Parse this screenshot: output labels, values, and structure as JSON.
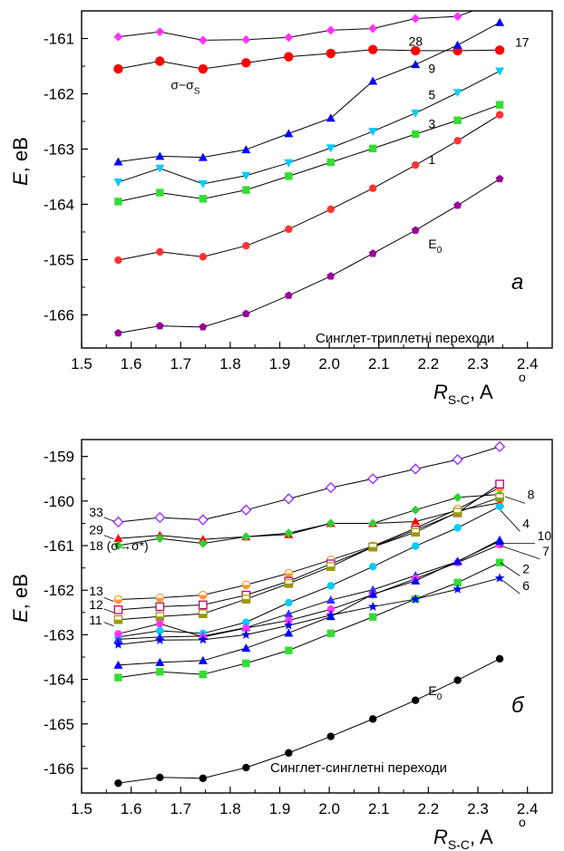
{
  "chart_data": [
    {
      "type": "line",
      "panel_letter": "а",
      "annotation": "Синглет-триплетні переходи",
      "ylabel_italic": "E",
      "ylabel_rest": ", eB",
      "xlabel_main": "R",
      "xlabel_sub": "S-C",
      "xlabel_rest": ", A",
      "xlabel_ring": "o",
      "xlim": [
        1.5,
        2.45
      ],
      "ylim": [
        -166.6,
        -160.5
      ],
      "xticks": [
        "1.5",
        "1.6",
        "1.7",
        "1.8",
        "1.9",
        "2.0",
        "2.1",
        "2.2",
        "2.3",
        "2.4"
      ],
      "yticks": [
        "-161",
        "-162",
        "-163",
        "-164",
        "-165",
        "-166"
      ],
      "x": [
        1.574,
        1.658,
        1.745,
        1.832,
        1.918,
        2.003,
        2.088,
        2.174,
        2.259,
        2.344
      ],
      "series": [
        {
          "name": "28",
          "color": "#ff33ff",
          "marker": "diamond",
          "values": [
            -160.97,
            -160.88,
            -161.03,
            -161.02,
            -160.98,
            -160.85,
            -160.82,
            -160.64,
            -160.6,
            -160.32
          ]
        },
        {
          "name": "17",
          "color": "#ff0000",
          "marker": "circle-lg",
          "values": [
            -161.55,
            -161.41,
            -161.55,
            -161.44,
            -161.33,
            -161.27,
            -161.2,
            -161.22,
            -161.22,
            -161.21
          ]
        },
        {
          "name": "9",
          "color": "#0000ff",
          "marker": "triangle",
          "values": [
            -163.23,
            -163.13,
            -163.15,
            -163.01,
            -162.72,
            -162.44,
            -161.77,
            -161.47,
            -161.12,
            -160.71
          ]
        },
        {
          "name": "5",
          "color": "#00ccff",
          "marker": "triangle-down",
          "values": [
            -163.6,
            -163.35,
            -163.63,
            -163.48,
            -163.25,
            -162.98,
            -162.68,
            -162.35,
            -161.98,
            -161.59
          ]
        },
        {
          "name": "3",
          "color": "#33dd33",
          "marker": "square",
          "values": [
            -163.95,
            -163.79,
            -163.9,
            -163.74,
            -163.49,
            -163.24,
            -162.99,
            -162.73,
            -162.48,
            -162.2
          ]
        },
        {
          "name": "1",
          "color": "#ff3333",
          "marker": "circle",
          "values": [
            -165.01,
            -164.86,
            -164.95,
            -164.75,
            -164.45,
            -164.09,
            -163.71,
            -163.29,
            -162.85,
            -162.38
          ]
        },
        {
          "name": "E",
          "sub": "0",
          "color": "#990099",
          "marker": "pentagon",
          "values": [
            -166.33,
            -166.2,
            -166.22,
            -165.98,
            -165.65,
            -165.3,
            -164.89,
            -164.47,
            -164.02,
            -163.54
          ]
        }
      ],
      "inline_labels": [
        {
          "text": "28",
          "sub": "",
          "x": 2.16,
          "y": -161.13
        },
        {
          "text": "17",
          "sub": "",
          "x": 2.375,
          "y": -161.15
        },
        {
          "text": "9",
          "sub": "",
          "x": 2.2,
          "y": -161.62
        },
        {
          "text": "5",
          "sub": "",
          "x": 2.2,
          "y": -162.1
        },
        {
          "text": "3",
          "sub": "",
          "x": 2.2,
          "y": -162.62
        },
        {
          "text": "1",
          "sub": "",
          "x": 2.2,
          "y": -163.27
        },
        {
          "text": "E",
          "sub": "0",
          "x": 2.2,
          "y": -164.8
        },
        {
          "text": "σ−σ",
          "sub": "S",
          "x": 1.68,
          "y": -161.92
        }
      ]
    },
    {
      "type": "line",
      "panel_letter": "б",
      "annotation": "Синглет-синглетні переходи",
      "ylabel_italic": "E",
      "ylabel_rest": ", eB",
      "xlabel_main": "R",
      "xlabel_sub": "S-C",
      "xlabel_rest": ", A",
      "xlabel_ring": "o",
      "xlim": [
        1.5,
        2.45
      ],
      "ylim": [
        -166.55,
        -158.62
      ],
      "xticks": [
        "1.5",
        "1.6",
        "1.7",
        "1.8",
        "1.9",
        "2.0",
        "2.1",
        "2.2",
        "2.3",
        "2.4"
      ],
      "yticks": [
        "-159",
        "-160",
        "-161",
        "-162",
        "-163",
        "-164",
        "-165",
        "-166"
      ],
      "x": [
        1.574,
        1.658,
        1.745,
        1.832,
        1.918,
        2.003,
        2.088,
        2.174,
        2.259,
        2.344
      ],
      "series": [
        {
          "name": "33",
          "color": "#9933ff",
          "marker": "diamond-open",
          "values": [
            -160.47,
            -160.37,
            -160.42,
            -160.2,
            -159.95,
            -159.7,
            -159.5,
            -159.28,
            -159.07,
            -158.78
          ]
        },
        {
          "name": "29",
          "color": "#ff0000",
          "marker": "triangle",
          "values": [
            -160.84,
            -160.77,
            -160.86,
            -160.8,
            -160.75,
            -160.5,
            -160.5,
            -160.46,
            -160.21,
            -160.04
          ]
        },
        {
          "name": "8",
          "color": "#33cc33",
          "marker": "diamond",
          "values": [
            -161.0,
            -160.84,
            -160.95,
            -160.8,
            -160.72,
            -160.5,
            -160.5,
            -160.2,
            -159.92,
            -159.85
          ]
        },
        {
          "name": "13",
          "color": "#ff9933",
          "marker": "circle-half",
          "values": [
            -162.21,
            -162.17,
            -162.11,
            -161.88,
            -161.62,
            -161.32,
            -161.01,
            -160.61,
            -160.18,
            -159.7
          ]
        },
        {
          "name": "12",
          "color": "#cc0066",
          "marker": "square-open",
          "values": [
            -162.44,
            -162.37,
            -162.33,
            -162.11,
            -161.8,
            -161.41,
            -161.03,
            -160.65,
            -160.26,
            -159.62
          ]
        },
        {
          "name": "11",
          "color": "#999900",
          "marker": "square-half",
          "values": [
            -162.66,
            -162.59,
            -162.53,
            -162.2,
            -161.85,
            -161.47,
            -161.03,
            -160.7,
            -160.25,
            -159.92
          ]
        },
        {
          "name": "4",
          "color": "#00ccff",
          "marker": "circle",
          "values": [
            -163.05,
            -162.91,
            -162.97,
            -162.72,
            -162.28,
            -161.9,
            -161.47,
            -161.01,
            -160.6,
            -160.12
          ]
        },
        {
          "name": "10",
          "color": "#3333ff",
          "marker": "triangle",
          "values": [
            -163.1,
            -163.05,
            -163.03,
            -162.84,
            -162.53,
            -162.22,
            -161.99,
            -161.67,
            -161.36,
            -160.87
          ]
        },
        {
          "name": "7",
          "color": "#ff33ff",
          "marker": "circle",
          "values": [
            -162.98,
            -162.75,
            -163.05,
            -162.85,
            -162.68,
            -162.43,
            -162.1,
            -161.74,
            -161.38,
            -160.98
          ]
        },
        {
          "name": "2",
          "color": "#33dd33",
          "marker": "square",
          "values": [
            -163.96,
            -163.83,
            -163.89,
            -163.64,
            -163.35,
            -162.97,
            -162.6,
            -162.2,
            -161.83,
            -161.38
          ]
        },
        {
          "name": "6",
          "color": "#0000ff",
          "marker": "star",
          "values": [
            -163.22,
            -163.12,
            -163.11,
            -163.0,
            -162.79,
            -162.56,
            -162.37,
            -162.2,
            -161.98,
            -161.73
          ]
        },
        {
          "name": "",
          "color": "#0000ff",
          "marker": "triangle",
          "values": [
            -163.68,
            -163.62,
            -163.58,
            -163.3,
            -162.96,
            -162.59,
            -162.09,
            -161.79,
            -161.35,
            -160.9
          ]
        },
        {
          "name": "E",
          "sub": "0",
          "color": "#000000",
          "marker": "circle",
          "values": [
            -166.33,
            -166.2,
            -166.22,
            -165.98,
            -165.65,
            -165.28,
            -164.89,
            -164.47,
            -164.02,
            -163.54
          ]
        }
      ],
      "inline_labels": [
        {
          "text": "33",
          "sub": "",
          "x": 1.515,
          "y": -160.35
        },
        {
          "text": "29",
          "sub": "",
          "x": 1.515,
          "y": -160.74
        },
        {
          "text": "18 (σ→σ*)",
          "sub": "",
          "x": 1.515,
          "y": -161.1
        },
        {
          "text": "13",
          "sub": "",
          "x": 1.515,
          "y": -162.12
        },
        {
          "text": "12",
          "sub": "",
          "x": 1.515,
          "y": -162.42
        },
        {
          "text": "11",
          "sub": "",
          "x": 1.515,
          "y": -162.77
        },
        {
          "text": "8",
          "sub": "",
          "x": 2.4,
          "y": -159.95
        },
        {
          "text": "4",
          "sub": "",
          "x": 2.39,
          "y": -160.6
        },
        {
          "text": "10",
          "sub": "",
          "x": 2.42,
          "y": -160.88
        },
        {
          "text": "7",
          "sub": "",
          "x": 2.43,
          "y": -161.22
        },
        {
          "text": "2",
          "sub": "",
          "x": 2.39,
          "y": -161.62
        },
        {
          "text": "6",
          "sub": "",
          "x": 2.39,
          "y": -162.0
        },
        {
          "text": "E",
          "sub": "0",
          "x": 2.2,
          "y": -164.35
        }
      ]
    }
  ]
}
